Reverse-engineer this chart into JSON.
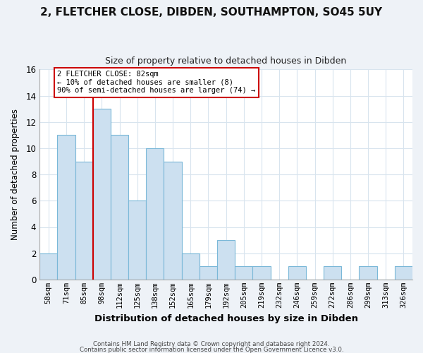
{
  "title1": "2, FLETCHER CLOSE, DIBDEN, SOUTHAMPTON, SO45 5UY",
  "title2": "Size of property relative to detached houses in Dibden",
  "xlabel": "Distribution of detached houses by size in Dibden",
  "ylabel": "Number of detached properties",
  "footer1": "Contains HM Land Registry data © Crown copyright and database right 2024.",
  "footer2": "Contains public sector information licensed under the Open Government Licence v3.0.",
  "bin_labels": [
    "58sqm",
    "71sqm",
    "85sqm",
    "98sqm",
    "112sqm",
    "125sqm",
    "138sqm",
    "152sqm",
    "165sqm",
    "179sqm",
    "192sqm",
    "205sqm",
    "219sqm",
    "232sqm",
    "246sqm",
    "259sqm",
    "272sqm",
    "286sqm",
    "299sqm",
    "313sqm",
    "326sqm"
  ],
  "bar_heights": [
    2,
    11,
    9,
    13,
    11,
    6,
    10,
    9,
    2,
    1,
    3,
    1,
    1,
    0,
    1,
    0,
    1,
    0,
    1,
    0,
    1
  ],
  "bar_color": "#cce0f0",
  "bar_edge_color": "#7ab8d8",
  "vline_color": "#cc0000",
  "annotation_line1": "2 FLETCHER CLOSE: 82sqm",
  "annotation_line2": "← 10% of detached houses are smaller (8)",
  "annotation_line3": "90% of semi-detached houses are larger (74) →",
  "annotation_box_color": "#ffffff",
  "annotation_box_edge_color": "#cc0000",
  "ylim": [
    0,
    16
  ],
  "yticks": [
    0,
    2,
    4,
    6,
    8,
    10,
    12,
    14,
    16
  ],
  "grid_color": "#d8e4ee",
  "background_color": "#eef2f7",
  "plot_bg_color": "#ffffff",
  "title1_fontsize": 11,
  "title2_fontsize": 9
}
